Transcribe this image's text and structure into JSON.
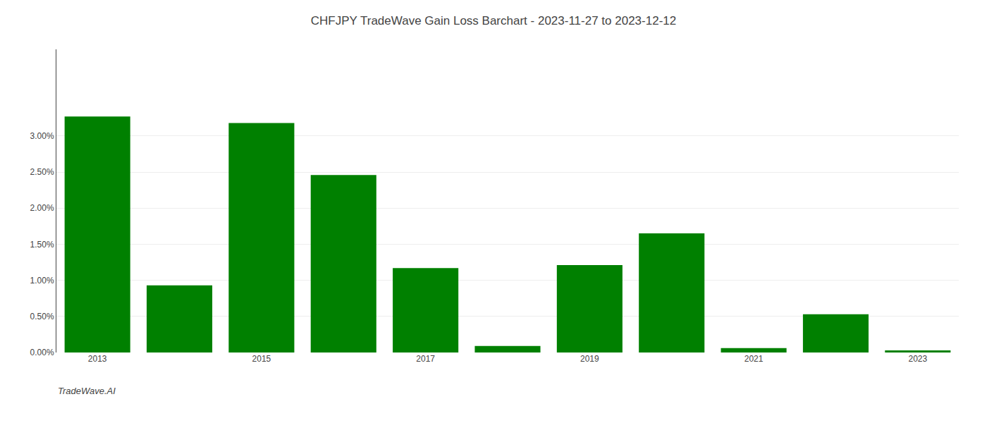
{
  "chart_data": {
    "type": "bar",
    "title": "CHFJPY TradeWave Gain Loss Barchart - 2023-11-27 to 2023-12-12",
    "annotations": [
      "TradeWave.AI"
    ],
    "categories": [
      "2013",
      null,
      "2015",
      null,
      "2017",
      null,
      "2019",
      null,
      "2021",
      null,
      "2023"
    ],
    "values": [
      0.0327,
      0.0093,
      0.0318,
      0.0246,
      0.0117,
      0.0009,
      0.0121,
      0.0165,
      0.0006,
      0.0053,
      0.0003
    ],
    "color": "#008000",
    "ylim": [
      0,
      0.042
    ],
    "yticks": [
      {
        "value": 0.0,
        "label": "0.00%"
      },
      {
        "value": 0.005,
        "label": "0.50%"
      },
      {
        "value": 0.01,
        "label": "1.00%"
      },
      {
        "value": 0.015,
        "label": "1.50%"
      },
      {
        "value": 0.02,
        "label": "2.00%"
      },
      {
        "value": 0.025,
        "label": "2.50%"
      },
      {
        "value": 0.03,
        "label": "3.00%"
      }
    ],
    "grid": true
  }
}
